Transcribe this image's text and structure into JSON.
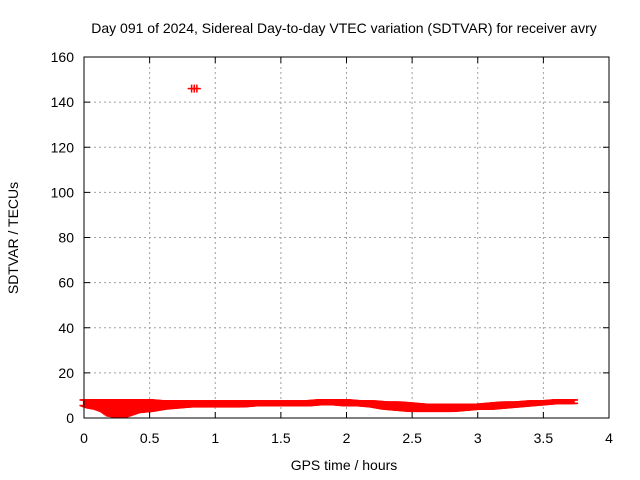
{
  "chart_data": {
    "type": "scatter",
    "title": "Day 091 of 2024, Sidereal Day-to-day VTEC variation (SDTVAR) for receiver avry",
    "xlabel": "GPS time / hours",
    "ylabel": "SDTVAR / TECUs",
    "xlim": [
      0,
      4
    ],
    "ylim": [
      0,
      160
    ],
    "xticks": [
      0,
      0.5,
      1,
      1.5,
      2,
      2.5,
      3,
      3.5,
      4
    ],
    "xtick_labels": [
      "0",
      "0.5",
      "1",
      "1.5",
      "2",
      "2.5",
      "3",
      "3.5",
      "4"
    ],
    "yticks": [
      0,
      20,
      40,
      60,
      80,
      100,
      120,
      140,
      160
    ],
    "ytick_labels": [
      "0",
      "20",
      "40",
      "60",
      "80",
      "100",
      "120",
      "140",
      "160"
    ],
    "grid": true,
    "marker": "plus",
    "series": [
      {
        "name": "SDTVAR",
        "color": "#ff0000",
        "band": {
          "x": [
            0.0,
            0.05,
            0.1,
            0.15,
            0.2,
            0.25,
            0.3,
            0.35,
            0.4,
            0.5,
            0.6,
            0.7,
            0.8,
            0.9,
            1.0,
            1.1,
            1.2,
            1.3,
            1.4,
            1.5,
            1.6,
            1.7,
            1.8,
            1.9,
            2.0,
            2.1,
            2.2,
            2.3,
            2.4,
            2.5,
            2.6,
            2.7,
            2.8,
            2.9,
            3.0,
            3.1,
            3.2,
            3.3,
            3.4,
            3.5,
            3.6,
            3.7,
            3.73
          ],
          "low": [
            5.5,
            4.5,
            4.0,
            3.0,
            1.0,
            0.5,
            0.5,
            1.5,
            2.5,
            3.0,
            4.0,
            4.5,
            5.0,
            5.0,
            5.0,
            5.0,
            5.0,
            5.5,
            5.5,
            5.5,
            5.5,
            5.5,
            6.0,
            6.0,
            5.5,
            5.5,
            5.0,
            4.0,
            3.5,
            3.0,
            3.0,
            3.0,
            3.0,
            3.5,
            4.0,
            4.0,
            4.5,
            5.0,
            5.5,
            6.0,
            6.5,
            6.5,
            6.5
          ],
          "high": [
            8.0,
            8.0,
            8.0,
            8.0,
            8.0,
            8.0,
            8.0,
            8.0,
            8.0,
            8.0,
            7.5,
            7.5,
            7.5,
            7.5,
            7.5,
            7.5,
            7.5,
            7.5,
            7.5,
            7.5,
            7.5,
            7.5,
            8.0,
            8.0,
            8.0,
            7.5,
            7.5,
            7.0,
            7.0,
            6.5,
            6.0,
            6.0,
            6.0,
            6.0,
            6.0,
            6.5,
            7.0,
            7.0,
            7.5,
            7.5,
            8.0,
            8.0,
            8.0
          ]
        },
        "outliers": [
          {
            "x": 0.82,
            "y": 146
          },
          {
            "x": 0.84,
            "y": 146
          },
          {
            "x": 0.86,
            "y": 146
          }
        ]
      }
    ]
  }
}
